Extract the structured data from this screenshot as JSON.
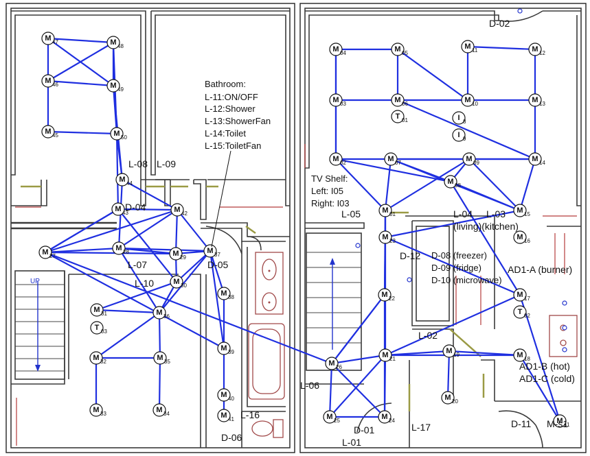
{
  "bathroom_note": {
    "title": "Bathroom:",
    "lines": [
      "L-11:ON/OFF",
      "L-12:Shower",
      "L-13:ShowerFan",
      "L-14:Toilet",
      "L-15:ToiletFan"
    ]
  },
  "tv_note": {
    "lines": [
      "TV Shelf:",
      "Left: I05",
      "Right: I03"
    ]
  },
  "kitchen_note": {
    "lines": [
      "D-08 (freezer)",
      "D-09 (fridge)",
      "D-10 (microwave)"
    ]
  },
  "labels": [
    {
      "text": "L-08"
    },
    {
      "text": "L-09"
    },
    {
      "text": "D-04"
    },
    {
      "text": "L-07"
    },
    {
      "text": "L-10"
    },
    {
      "text": "D-05"
    },
    {
      "text": "L-16"
    },
    {
      "text": "D-06"
    },
    {
      "text": "D-02"
    },
    {
      "text": "L-05"
    },
    {
      "text": "L-04"
    },
    {
      "text": "L-03"
    },
    {
      "text": "(living)(kitchen)"
    },
    {
      "text": "D-12"
    },
    {
      "text": "AD1-A (burner)"
    },
    {
      "text": "L-02"
    },
    {
      "text": "AD1-B (hot)"
    },
    {
      "text": "AD1-C (cold)"
    },
    {
      "text": "L-06"
    },
    {
      "text": "D-01"
    },
    {
      "text": "L-01"
    },
    {
      "text": "L-17"
    },
    {
      "text": "D-11"
    },
    {
      "text": "M-s1"
    }
  ],
  "sensors": [
    {
      "id": "47",
      "letter": "M"
    },
    {
      "id": "48",
      "letter": "M"
    },
    {
      "id": "46",
      "letter": "M"
    },
    {
      "id": "49",
      "letter": "M"
    },
    {
      "id": "45",
      "letter": "M"
    },
    {
      "id": "50",
      "letter": "M"
    },
    {
      "id": "44",
      "letter": "M"
    },
    {
      "id": "43",
      "letter": "M"
    },
    {
      "id": "42",
      "letter": "M"
    },
    {
      "id": "27",
      "letter": "M"
    },
    {
      "id": "28",
      "letter": "M"
    },
    {
      "id": "29",
      "letter": "M"
    },
    {
      "id": "37",
      "letter": "M"
    },
    {
      "id": "30",
      "letter": "M"
    },
    {
      "id": "38",
      "letter": "M"
    },
    {
      "id": "31",
      "letter": "M"
    },
    {
      "id": "03",
      "letter": "T"
    },
    {
      "id": "36",
      "letter": "M"
    },
    {
      "id": "32",
      "letter": "M"
    },
    {
      "id": "35",
      "letter": "M"
    },
    {
      "id": "39",
      "letter": "M"
    },
    {
      "id": "33",
      "letter": "M"
    },
    {
      "id": "34",
      "letter": "M"
    },
    {
      "id": "40",
      "letter": "M"
    },
    {
      "id": "41",
      "letter": "M"
    },
    {
      "id": "04",
      "letter": "M"
    },
    {
      "id": "05",
      "letter": "M"
    },
    {
      "id": "11",
      "letter": "M"
    },
    {
      "id": "12",
      "letter": "M"
    },
    {
      "id": "03",
      "letter": "M"
    },
    {
      "id": "06",
      "letter": "M"
    },
    {
      "id": "01",
      "letter": "T"
    },
    {
      "id": "10",
      "letter": "M"
    },
    {
      "id": "13",
      "letter": "M"
    },
    {
      "id": "8",
      "letter": "I"
    },
    {
      "id": "9",
      "letter": "I"
    },
    {
      "id": "02",
      "letter": "M"
    },
    {
      "id": "07",
      "letter": "M"
    },
    {
      "id": "09",
      "letter": "M"
    },
    {
      "id": "14",
      "letter": "M"
    },
    {
      "id": "08",
      "letter": "M"
    },
    {
      "id": "01",
      "letter": "M"
    },
    {
      "id": "15",
      "letter": "M"
    },
    {
      "id": "23",
      "letter": "M"
    },
    {
      "id": "16",
      "letter": "M"
    },
    {
      "id": "22",
      "letter": "M"
    },
    {
      "id": "17",
      "letter": "M"
    },
    {
      "id": "02",
      "letter": "T"
    },
    {
      "id": "21",
      "letter": "M"
    },
    {
      "id": "19",
      "letter": "M"
    },
    {
      "id": "18",
      "letter": "M"
    },
    {
      "id": "26",
      "letter": "M"
    },
    {
      "id": "20",
      "letter": "M"
    },
    {
      "id": "25",
      "letter": "M"
    },
    {
      "id": "24",
      "letter": "M"
    },
    {
      "id": "s1",
      "letter": "M"
    }
  ]
}
